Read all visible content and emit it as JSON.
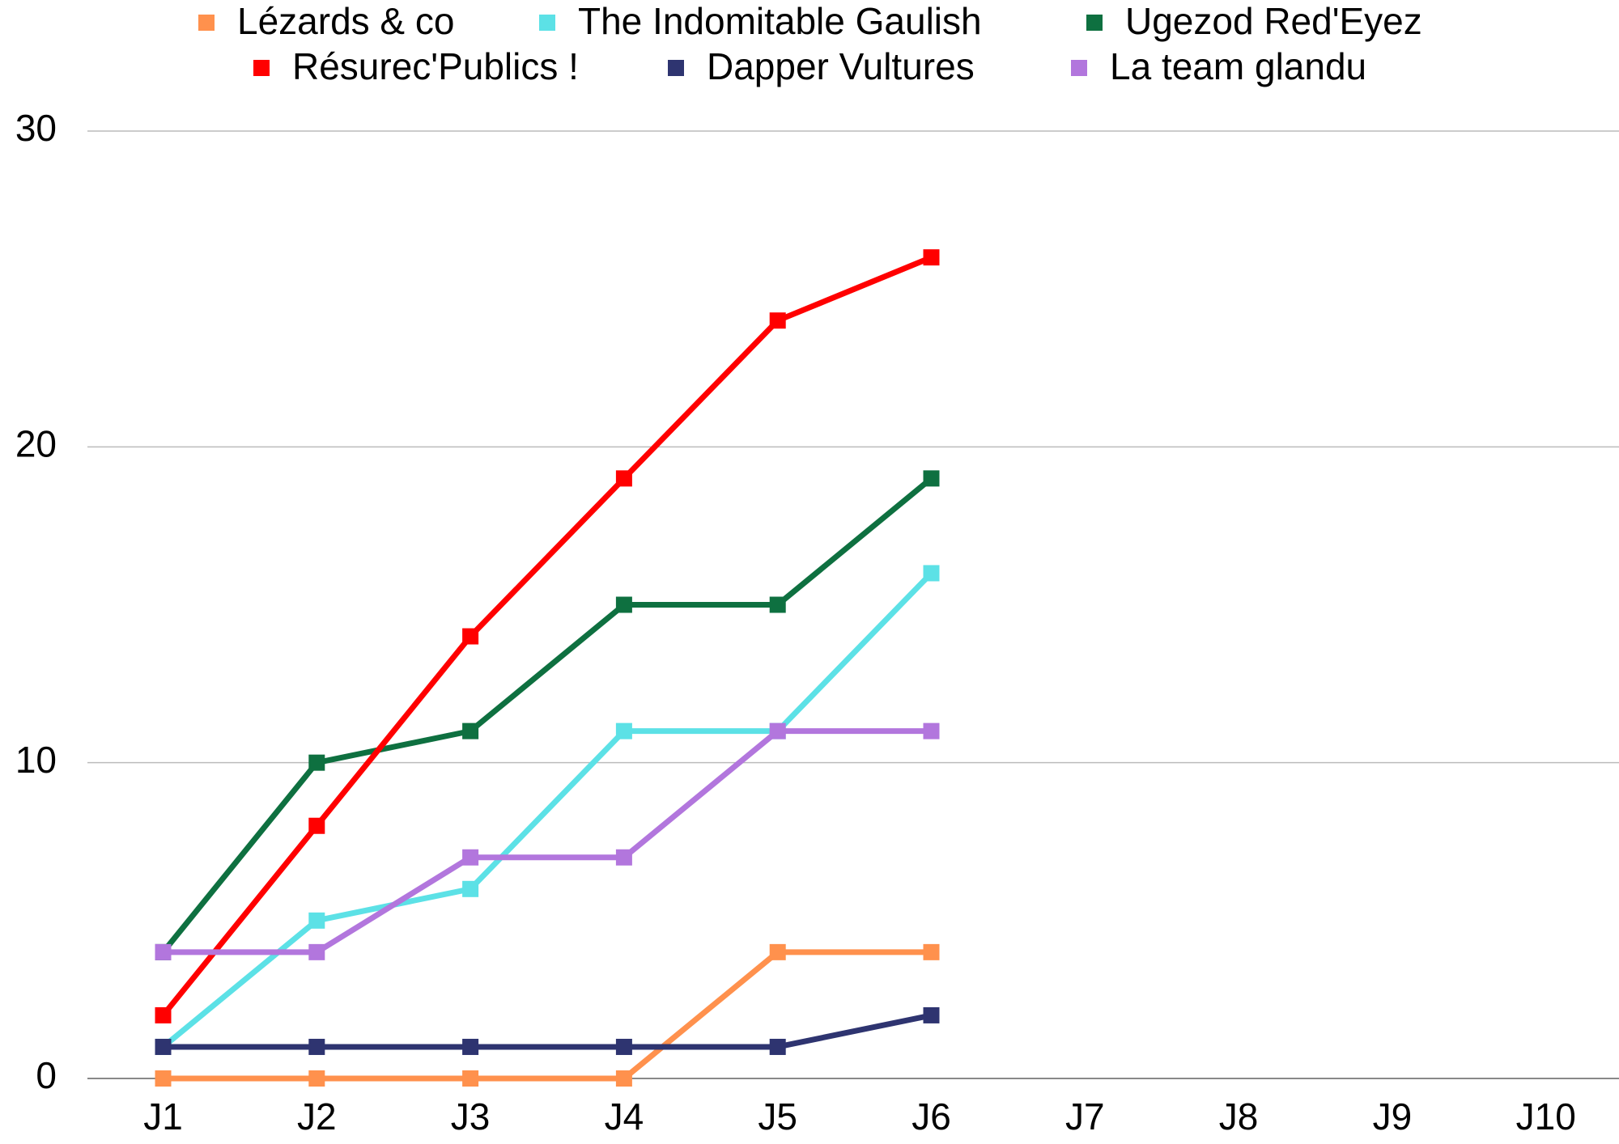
{
  "chart_data": {
    "type": "line",
    "categories": [
      "J1",
      "J2",
      "J3",
      "J4",
      "J5",
      "J6",
      "J7",
      "J8",
      "J9",
      "J10"
    ],
    "series": [
      {
        "name": "Lézards & co",
        "color": "#ff914d",
        "values": [
          0,
          0,
          0,
          0,
          4,
          4,
          null,
          null,
          null,
          null
        ]
      },
      {
        "name": "The Indomitable Gaulish",
        "color": "#5ce1e6",
        "values": [
          1,
          5,
          6,
          11,
          11,
          16,
          null,
          null,
          null,
          null
        ]
      },
      {
        "name": "Ugezod Red'Eyez",
        "color": "#0e7040",
        "values": [
          4,
          10,
          11,
          15,
          15,
          19,
          null,
          null,
          null,
          null
        ]
      },
      {
        "name": "Résurec'Publics !",
        "color": "#ff0000",
        "values": [
          2,
          8,
          14,
          19,
          24,
          26,
          null,
          null,
          null,
          null
        ]
      },
      {
        "name": "Dapper Vultures",
        "color": "#2e3470",
        "values": [
          1,
          1,
          1,
          1,
          1,
          2,
          null,
          null,
          null,
          null
        ]
      },
      {
        "name": "La team glandu",
        "color": "#b276dd",
        "values": [
          4,
          4,
          7,
          7,
          11,
          11,
          null,
          null,
          null,
          null
        ]
      }
    ],
    "ylim": [
      0,
      30
    ],
    "yticks": [
      0,
      10,
      20,
      30
    ],
    "grid": true,
    "legend": "top"
  }
}
